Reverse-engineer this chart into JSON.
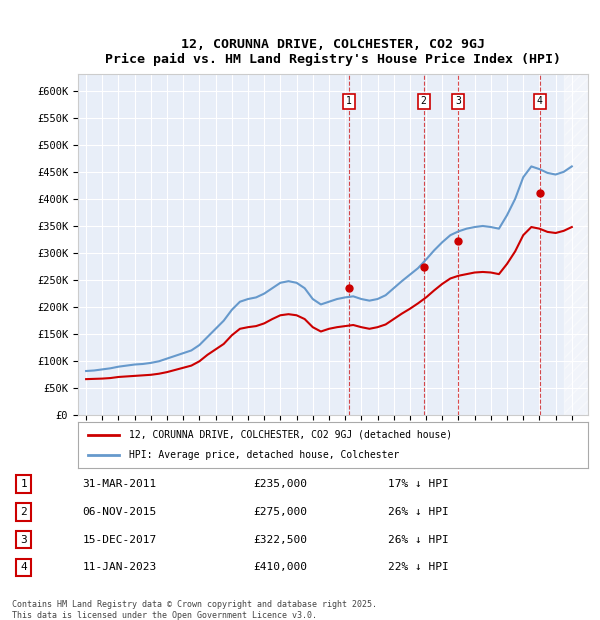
{
  "title": "12, CORUNNA DRIVE, COLCHESTER, CO2 9GJ",
  "subtitle": "Price paid vs. HM Land Registry's House Price Index (HPI)",
  "ylabel": "",
  "ylim": [
    0,
    630000
  ],
  "yticks": [
    0,
    50000,
    100000,
    150000,
    200000,
    250000,
    300000,
    350000,
    400000,
    450000,
    500000,
    550000,
    600000
  ],
  "ytick_labels": [
    "£0",
    "£50K",
    "£100K",
    "£150K",
    "£200K",
    "£250K",
    "£300K",
    "£350K",
    "£400K",
    "£450K",
    "£500K",
    "£550K",
    "£600K"
  ],
  "hpi_color": "#6699cc",
  "price_color": "#cc0000",
  "bg_color": "#e8eef8",
  "grid_color": "#ffffff",
  "transactions": [
    {
      "label": "1",
      "date_num": 2011.25,
      "price": 235000
    },
    {
      "label": "2",
      "date_num": 2015.85,
      "price": 275000
    },
    {
      "label": "3",
      "date_num": 2017.96,
      "price": 322500
    },
    {
      "label": "4",
      "date_num": 2023.03,
      "price": 410000
    }
  ],
  "transaction_labels": [
    {
      "num": "1",
      "date": "31-MAR-2011",
      "price": "£235,000",
      "pct": "17% ↓ HPI"
    },
    {
      "num": "2",
      "date": "06-NOV-2015",
      "price": "£275,000",
      "pct": "26% ↓ HPI"
    },
    {
      "num": "3",
      "date": "15-DEC-2017",
      "price": "£322,500",
      "pct": "26% ↓ HPI"
    },
    {
      "num": "4",
      "date": "11-JAN-2023",
      "price": "£410,000",
      "pct": "22% ↓ HPI"
    }
  ],
  "legend1": "12, CORUNNA DRIVE, COLCHESTER, CO2 9GJ (detached house)",
  "legend2": "HPI: Average price, detached house, Colchester",
  "footer": "Contains HM Land Registry data © Crown copyright and database right 2025.\nThis data is licensed under the Open Government Licence v3.0.",
  "hpi_data": {
    "years": [
      1995,
      1995.5,
      1996,
      1996.5,
      1997,
      1997.5,
      1998,
      1998.5,
      1999,
      1999.5,
      2000,
      2000.5,
      2001,
      2001.5,
      2002,
      2002.5,
      2003,
      2003.5,
      2004,
      2004.5,
      2005,
      2005.5,
      2006,
      2006.5,
      2007,
      2007.5,
      2008,
      2008.5,
      2009,
      2009.5,
      2010,
      2010.5,
      2011,
      2011.5,
      2012,
      2012.5,
      2013,
      2013.5,
      2014,
      2014.5,
      2015,
      2015.5,
      2016,
      2016.5,
      2017,
      2017.5,
      2018,
      2018.5,
      2019,
      2019.5,
      2020,
      2020.5,
      2021,
      2021.5,
      2022,
      2022.5,
      2023,
      2023.5,
      2024,
      2024.5,
      2025
    ],
    "values": [
      82000,
      83000,
      85000,
      87000,
      90000,
      92000,
      94000,
      95000,
      97000,
      100000,
      105000,
      110000,
      115000,
      120000,
      130000,
      145000,
      160000,
      175000,
      195000,
      210000,
      215000,
      218000,
      225000,
      235000,
      245000,
      248000,
      245000,
      235000,
      215000,
      205000,
      210000,
      215000,
      218000,
      220000,
      215000,
      212000,
      215000,
      222000,
      235000,
      248000,
      260000,
      272000,
      288000,
      305000,
      320000,
      333000,
      340000,
      345000,
      348000,
      350000,
      348000,
      345000,
      370000,
      400000,
      440000,
      460000,
      455000,
      448000,
      445000,
      450000,
      460000
    ]
  },
  "price_data": {
    "years": [
      1995,
      1995.5,
      1996,
      1996.5,
      1997,
      1997.5,
      1998,
      1998.5,
      1999,
      1999.5,
      2000,
      2000.5,
      2001,
      2001.5,
      2002,
      2002.5,
      2003,
      2003.5,
      2004,
      2004.5,
      2005,
      2005.5,
      2006,
      2006.5,
      2007,
      2007.5,
      2008,
      2008.5,
      2009,
      2009.5,
      2010,
      2010.5,
      2011,
      2011.5,
      2012,
      2012.5,
      2013,
      2013.5,
      2014,
      2014.5,
      2015,
      2015.5,
      2016,
      2016.5,
      2017,
      2017.5,
      2018,
      2018.5,
      2019,
      2019.5,
      2020,
      2020.5,
      2021,
      2021.5,
      2022,
      2022.5,
      2023,
      2023.5,
      2024,
      2024.5,
      2025
    ],
    "values": [
      67000,
      67500,
      68000,
      69000,
      71000,
      72000,
      73000,
      74000,
      75000,
      77000,
      80000,
      84000,
      88000,
      92000,
      100000,
      112000,
      122000,
      132000,
      148000,
      160000,
      163000,
      165000,
      170000,
      178000,
      185000,
      187000,
      185000,
      178000,
      163000,
      155000,
      160000,
      163000,
      165000,
      167000,
      163000,
      160000,
      163000,
      168000,
      178000,
      188000,
      197000,
      207000,
      218000,
      231000,
      243000,
      253000,
      258000,
      261000,
      264000,
      265000,
      264000,
      261000,
      280000,
      303000,
      333000,
      348000,
      345000,
      339000,
      337000,
      341000,
      348000
    ]
  }
}
